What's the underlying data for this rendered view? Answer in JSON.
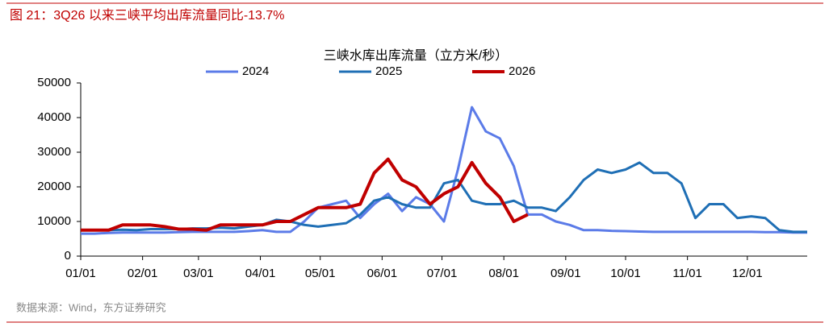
{
  "header": {
    "title": "图 21：3Q26 以来三峡平均出库流量同比-13.7%"
  },
  "chart_data": {
    "type": "line",
    "title": "三峡水库出库流量（立方米/秒）",
    "x": [
      "01/01",
      "01/08",
      "01/15",
      "01/22",
      "01/29",
      "02/05",
      "02/12",
      "02/19",
      "02/26",
      "03/05",
      "03/12",
      "03/19",
      "03/26",
      "04/02",
      "04/09",
      "04/16",
      "04/23",
      "04/30",
      "05/07",
      "05/14",
      "05/21",
      "05/28",
      "06/04",
      "06/11",
      "06/18",
      "06/25",
      "07/02",
      "07/09",
      "07/16",
      "07/23",
      "07/30",
      "08/06",
      "08/13",
      "08/20",
      "08/27",
      "09/03",
      "09/10",
      "09/17",
      "09/24",
      "10/01",
      "10/08",
      "10/15",
      "10/22",
      "10/29",
      "11/05",
      "11/12",
      "11/19",
      "11/26",
      "12/03",
      "12/10",
      "12/17",
      "12/24",
      "12/31"
    ],
    "series": [
      {
        "name": "2024",
        "color": "#5b7be8",
        "values": [
          6500,
          6500,
          6700,
          6800,
          6800,
          6800,
          6800,
          6900,
          7000,
          7000,
          7000,
          7000,
          7200,
          7500,
          7000,
          7000,
          10000,
          14000,
          15000,
          16000,
          11000,
          15000,
          18000,
          13000,
          17000,
          15000,
          10000,
          25000,
          43000,
          36000,
          34000,
          26000,
          12000,
          12000,
          10000,
          9000,
          7500,
          7500,
          7300,
          7200,
          7100,
          7000,
          7000,
          7000,
          7000,
          7000,
          7000,
          7000,
          7000,
          6900,
          6900,
          6800,
          6800
        ]
      },
      {
        "name": "2025",
        "color": "#1f6fb5",
        "values": [
          7500,
          7500,
          7500,
          7600,
          7500,
          7800,
          7800,
          7800,
          8000,
          8000,
          8200,
          8000,
          8500,
          9000,
          10500,
          10000,
          9000,
          8500,
          9000,
          9500,
          12000,
          16000,
          17000,
          15000,
          14000,
          14000,
          21000,
          22000,
          16000,
          15000,
          15000,
          16000,
          14000,
          14000,
          13000,
          17000,
          22000,
          25000,
          24000,
          25000,
          27000,
          24000,
          24000,
          21000,
          11000,
          15000,
          15000,
          11000,
          11500,
          11000,
          7500,
          7000,
          7000
        ]
      },
      {
        "name": "2026",
        "color": "#c00000",
        "values": [
          7500,
          7500,
          7500,
          9000,
          9000,
          9000,
          8500,
          7800,
          7800,
          7500,
          9000,
          9000,
          9000,
          9000,
          10000,
          10000,
          12000,
          14000,
          14000,
          14000,
          15000,
          24000,
          28000,
          22000,
          20000,
          15000,
          18000,
          20000,
          27000,
          21000,
          17000,
          10000,
          12000,
          null,
          null,
          null,
          null,
          null,
          null,
          null,
          null,
          null,
          null,
          null,
          null,
          null,
          null,
          null,
          null,
          null,
          null,
          null,
          null
        ]
      }
    ],
    "xticks": [
      "01/01",
      "02/01",
      "03/01",
      "04/01",
      "05/01",
      "06/01",
      "07/01",
      "08/01",
      "09/01",
      "10/01",
      "11/01",
      "12/01"
    ],
    "ylim": [
      0,
      50000
    ],
    "yticks": [
      0,
      10000,
      20000,
      30000,
      40000,
      50000
    ]
  },
  "footer": {
    "source": "数据来源：Wind，东方证券研究"
  }
}
